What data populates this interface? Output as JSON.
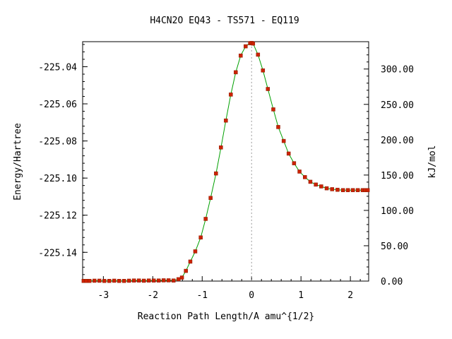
{
  "chart_data": {
    "type": "scatter",
    "title": "H4CN2O   EQ43 - TS571 - EQ119",
    "xlabel": "Reaction Path Length/A amu^{1/2}",
    "ylabel": "Energy/Hartree",
    "y2label": "kJ/mol",
    "xlim": [
      -3.42,
      2.37
    ],
    "ylim": [
      -225.1555,
      -225.0265
    ],
    "y2lim": [
      0,
      338.7
    ],
    "x_ticks": [
      "-3",
      "-2",
      "-1",
      "0",
      "1",
      "2"
    ],
    "x_tick_values": [
      -3,
      -2,
      -1,
      0,
      1,
      2
    ],
    "y_ticks": [
      "-225.04",
      "-225.06",
      "-225.08",
      "-225.10",
      "-225.12",
      "-225.14"
    ],
    "y_tick_values": [
      -225.04,
      -225.06,
      -225.08,
      -225.1,
      -225.12,
      -225.14
    ],
    "y2_ticks": [
      "0.00",
      "50.00",
      "100.00",
      "150.00",
      "200.00",
      "250.00",
      "300.00"
    ],
    "y2_tick_values": [
      0,
      50,
      100,
      150,
      200,
      250,
      300
    ],
    "ts_x": 0,
    "colors": {
      "line": "#00a000",
      "point": "#cc2200",
      "ts_line": "#999999"
    },
    "series": [
      {
        "x": [
          -3.4,
          -3.35,
          -3.28,
          -3.18,
          -3.08,
          -2.98,
          -2.88,
          -2.78,
          -2.68,
          -2.58,
          -2.48,
          -2.38,
          -2.28,
          -2.18,
          -2.08,
          -1.98,
          -1.88,
          -1.78,
          -1.68,
          -1.58,
          -1.48,
          -1.41,
          -1.33,
          -1.24,
          -1.14,
          -1.03,
          -0.93,
          -0.83,
          -0.72,
          -0.62,
          -0.52,
          -0.42,
          -0.32,
          -0.22,
          -0.12,
          -0.03,
          0.0,
          0.03,
          0.13,
          0.23,
          0.33,
          0.44,
          0.54,
          0.65,
          0.75,
          0.86,
          0.97,
          1.08,
          1.19,
          1.3,
          1.41,
          1.52,
          1.63,
          1.74,
          1.85,
          1.95,
          2.05,
          2.15,
          2.25,
          2.3,
          2.35
        ],
        "y": [
          -225.1554,
          -225.1554,
          -225.1554,
          -225.1553,
          -225.1553,
          -225.1554,
          -225.1554,
          -225.1553,
          -225.1554,
          -225.1554,
          -225.1553,
          -225.1552,
          -225.1552,
          -225.1553,
          -225.1552,
          -225.1552,
          -225.1552,
          -225.1551,
          -225.1551,
          -225.1552,
          -225.1545,
          -225.1536,
          -225.15,
          -225.145,
          -225.1395,
          -225.132,
          -225.122,
          -225.1107,
          -225.0975,
          -225.0835,
          -225.069,
          -225.055,
          -225.043,
          -225.034,
          -225.029,
          -225.0273,
          -225.0272,
          -225.0275,
          -225.0335,
          -225.042,
          -225.052,
          -225.063,
          -225.0725,
          -225.08,
          -225.0868,
          -225.092,
          -225.0965,
          -225.0995,
          -225.102,
          -225.1035,
          -225.1045,
          -225.1055,
          -225.106,
          -225.1063,
          -225.1065,
          -225.1065,
          -225.1065,
          -225.1065,
          -225.1065,
          -225.1065,
          -225.1065
        ]
      }
    ]
  }
}
